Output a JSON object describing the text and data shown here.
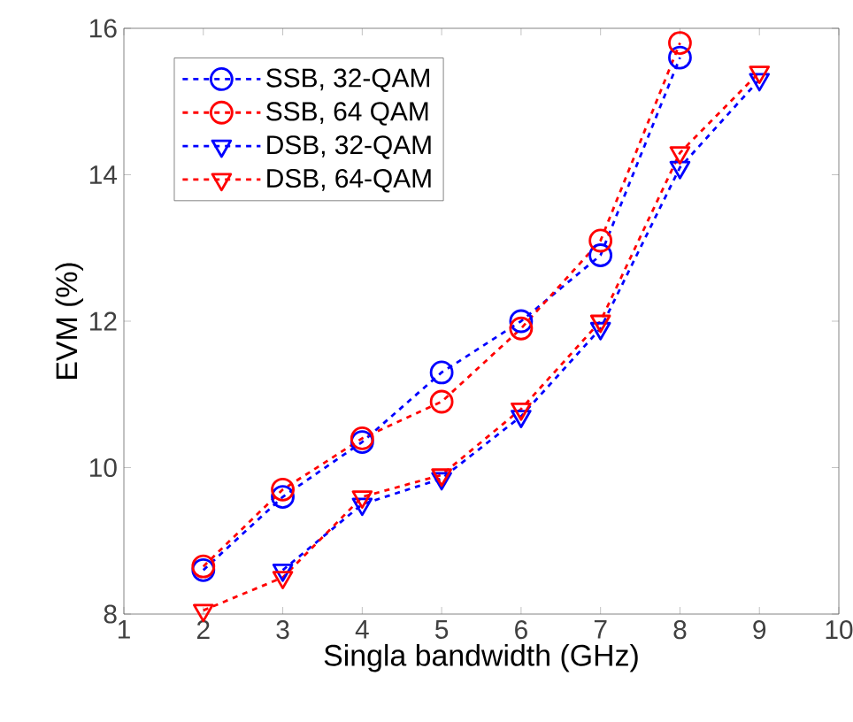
{
  "chart_data": {
    "type": "line",
    "xlabel": "Singla bandwidth (GHz)",
    "ylabel": "EVM (%)",
    "xlim": [
      1,
      10
    ],
    "xticks": [
      1,
      2,
      3,
      4,
      5,
      6,
      7,
      8,
      9,
      10
    ],
    "ylim": [
      8,
      16
    ],
    "yticks": [
      8,
      10,
      12,
      14,
      16
    ],
    "grid": false,
    "legend": "top left",
    "line_style": "dashed",
    "series": [
      {
        "name": "SSB, 32-QAM",
        "color": "#0000ff",
        "marker": "circle",
        "x": [
          2,
          3,
          4,
          5,
          6,
          7,
          8
        ],
        "values": [
          8.6,
          9.6,
          10.35,
          11.3,
          12.0,
          12.9,
          15.6
        ]
      },
      {
        "name": "SSB, 64 QAM",
        "color": "#ff0000",
        "marker": "circle",
        "x": [
          2,
          3,
          4,
          5,
          6,
          7,
          8
        ],
        "values": [
          8.65,
          9.7,
          10.4,
          10.9,
          11.9,
          13.1,
          15.8
        ]
      },
      {
        "name": "DSB, 32-QAM",
        "color": "#0000ff",
        "marker": "triangle",
        "x": [
          3,
          4,
          5,
          6,
          7,
          8,
          9
        ],
        "values": [
          8.6,
          9.5,
          9.85,
          10.7,
          11.9,
          14.1,
          15.3
        ]
      },
      {
        "name": "DSB, 64-QAM",
        "color": "#ff0000",
        "marker": "triangle",
        "x": [
          2,
          3,
          4,
          5,
          6,
          7,
          8,
          9
        ],
        "values": [
          8.05,
          8.5,
          9.6,
          9.9,
          10.8,
          12.0,
          14.3,
          15.4
        ]
      }
    ]
  }
}
